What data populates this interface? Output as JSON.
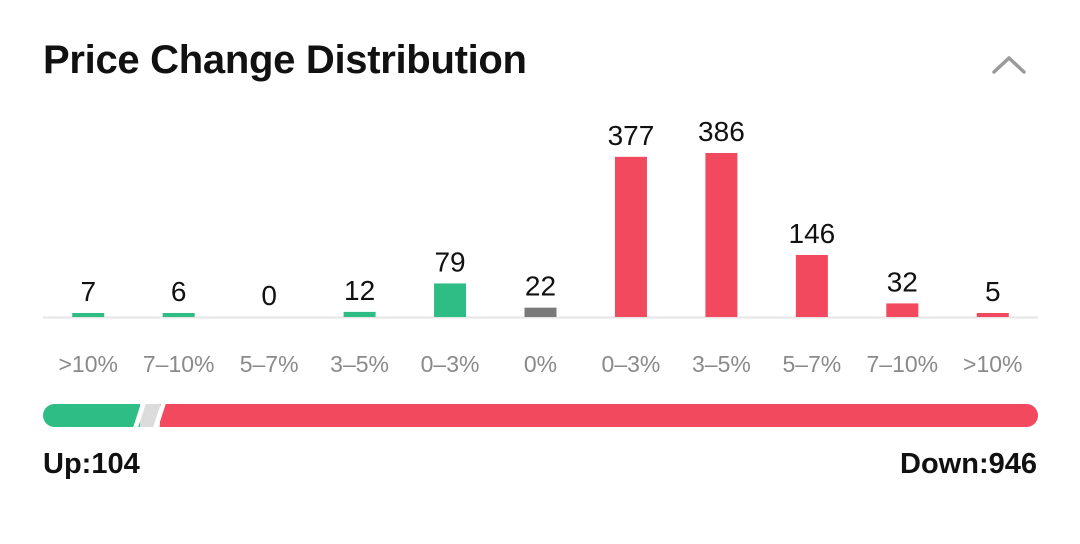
{
  "header": {
    "title": "Price Change Distribution",
    "collapse_icon": "chevron-up-icon"
  },
  "colors": {
    "up": "#2ebd85",
    "flat": "#7a7a7a",
    "down": "#f2495e",
    "ratio_flat": "#dcdcdc",
    "baseline": "#e6e6e6"
  },
  "chart_data": {
    "type": "bar",
    "title": "Price Change Distribution",
    "xlabel": "",
    "ylabel": "",
    "ylim": [
      0,
      386
    ],
    "categories": [
      ">10%",
      "7-10%",
      "5-7%",
      "3-5%",
      "0-3%",
      "0%",
      "0-3%",
      "3-5%",
      "5-7%",
      "7-10%",
      ">10%"
    ],
    "values": [
      7,
      6,
      0,
      12,
      79,
      22,
      377,
      386,
      146,
      32,
      5
    ],
    "groups": [
      "up",
      "up",
      "up",
      "up",
      "up",
      "flat",
      "down",
      "down",
      "down",
      "down",
      "down"
    ],
    "tick_labels": [
      ">10%",
      "7–10%",
      "5–7%",
      "3–5%",
      "0–3%",
      "0%",
      "0–3%",
      "3–5%",
      "5–7%",
      "7–10%",
      ">10%"
    ]
  },
  "ratio_bar": {
    "up": 104,
    "flat": 22,
    "down": 946
  },
  "summary": {
    "up_text": "Up:104",
    "down_text": "Down:946"
  }
}
